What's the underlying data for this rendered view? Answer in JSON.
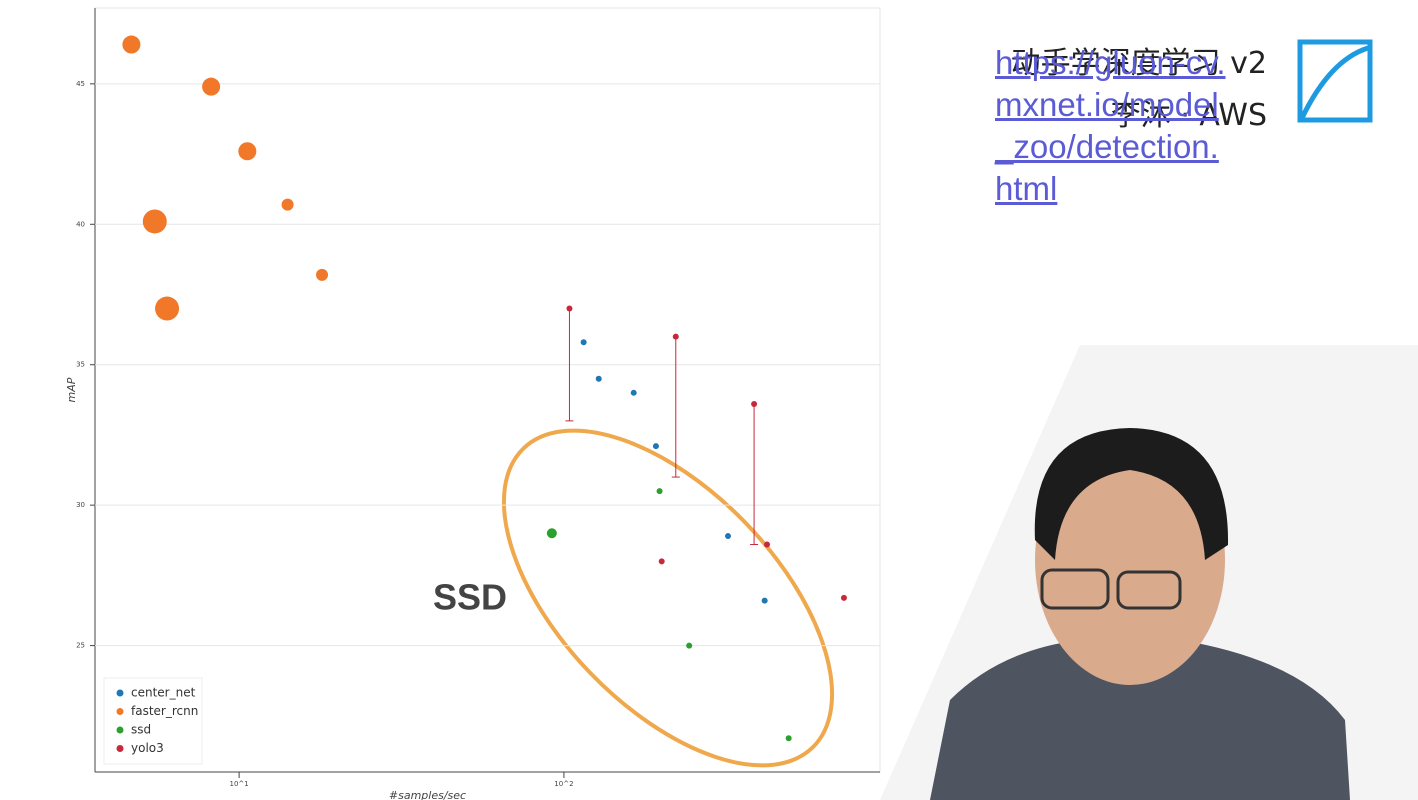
{
  "chart_data": {
    "type": "scatter",
    "xlabel": "#samples/sec",
    "ylabel": "mAP",
    "xscale": "log",
    "xlim": [
      3.6,
      940
    ],
    "ylim": [
      20.5,
      47.7
    ],
    "xticks": [
      {
        "value": 10,
        "label": "10^1"
      },
      {
        "value": 100,
        "label": "10^2"
      }
    ],
    "yticks": [
      25,
      30,
      35,
      40,
      45
    ],
    "grid": true,
    "legend": "lower left",
    "annotation": "SSD",
    "series": [
      {
        "name": "center_net",
        "color": "#1f77b4",
        "x": [
          115,
          128,
          164,
          192,
          320,
          415
        ],
        "values": [
          35.8,
          34.5,
          34.0,
          32.1,
          28.9,
          26.6
        ]
      },
      {
        "name": "faster_rcnn",
        "color": "#f07828",
        "x": [
          4.66,
          8.2,
          10.6,
          14.1,
          18.0,
          5.5,
          6.0
        ],
        "values": [
          46.4,
          44.9,
          42.6,
          40.7,
          38.2,
          40.1,
          37.0
        ],
        "sizes": [
          9,
          9,
          9,
          6,
          6,
          12,
          12
        ]
      },
      {
        "name": "ssd",
        "color": "#2ca02c",
        "x": [
          91.8,
          197,
          243,
          492
        ],
        "values": [
          29.0,
          30.5,
          25.0,
          21.7
        ],
        "sizes": [
          5,
          3,
          3,
          3
        ]
      },
      {
        "name": "yolo3",
        "color": "#c8283c",
        "x": [
          104,
          221,
          385,
          422,
          200,
          728
        ],
        "values": [
          37.0,
          36.0,
          33.6,
          28.6,
          28.0,
          26.7
        ],
        "lower": [
          33.0,
          31.0,
          28.6,
          null,
          null,
          null
        ]
      }
    ]
  },
  "course": {
    "title": "动手学深度学习 v2",
    "author": "李沐 · AWS"
  },
  "link": "https://gluon-cv.mxnet.io/model_zoo/detection.html"
}
